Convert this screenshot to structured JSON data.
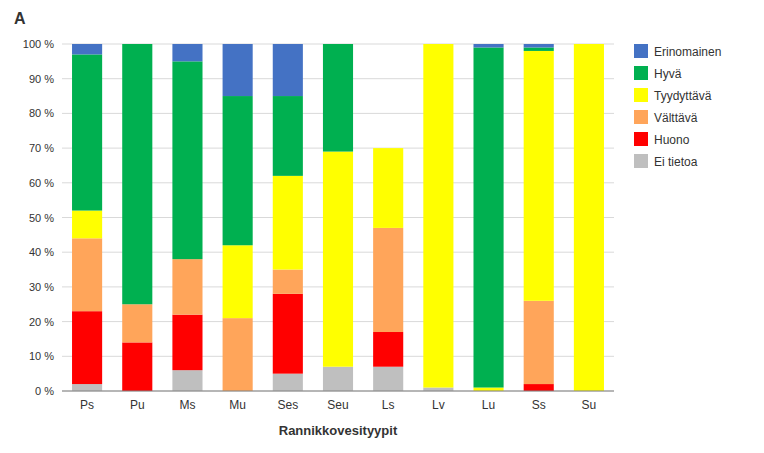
{
  "chart_data": {
    "type": "bar",
    "stacked": true,
    "title": "A",
    "xlabel": "Rannikkovesityypit",
    "categories": [
      "Ps",
      "Pu",
      "Ms",
      "Mu",
      "Ses",
      "Seu",
      "Ls",
      "Lv",
      "Lu",
      "Ss",
      "Su"
    ],
    "series": [
      {
        "name": "Ei tietoa",
        "color": "#bfbfbf",
        "values": [
          2,
          0,
          6,
          0,
          5,
          7,
          7,
          1,
          0,
          0,
          0
        ]
      },
      {
        "name": "Huono",
        "color": "#ff0000",
        "values": [
          21,
          14,
          16,
          0,
          23,
          0,
          10,
          0,
          0,
          2,
          0
        ]
      },
      {
        "name": "Välttävä",
        "color": "#ffa55a",
        "values": [
          21,
          11,
          16,
          21,
          7,
          0,
          30,
          0,
          0,
          24,
          0
        ]
      },
      {
        "name": "Tyydyttävä",
        "color": "#ffff00",
        "values": [
          8,
          0,
          0,
          21,
          27,
          62,
          23,
          99,
          1,
          72,
          100
        ]
      },
      {
        "name": "Hyvä",
        "color": "#00b050",
        "values": [
          45,
          75,
          57,
          43,
          23,
          31,
          0,
          0,
          98,
          1,
          0
        ]
      },
      {
        "name": "Erinomainen",
        "color": "#4472c4",
        "values": [
          3,
          0,
          5,
          15,
          15,
          0,
          0,
          0,
          1,
          1,
          0
        ]
      }
    ],
    "ylim": [
      0,
      100
    ],
    "yticks": [
      {
        "value": 0,
        "label": "0 %"
      },
      {
        "value": 10,
        "label": "10 %"
      },
      {
        "value": 20,
        "label": "20 %"
      },
      {
        "value": 30,
        "label": "30 %"
      },
      {
        "value": 40,
        "label": "40 %"
      },
      {
        "value": 50,
        "label": "50 %"
      },
      {
        "value": 60,
        "label": "60 %"
      },
      {
        "value": 70,
        "label": "70 %"
      },
      {
        "value": 80,
        "label": "80 %"
      },
      {
        "value": 90,
        "label": "90 %"
      },
      {
        "value": 100,
        "label": "100 %"
      }
    ],
    "grid": true,
    "legend": "right"
  }
}
